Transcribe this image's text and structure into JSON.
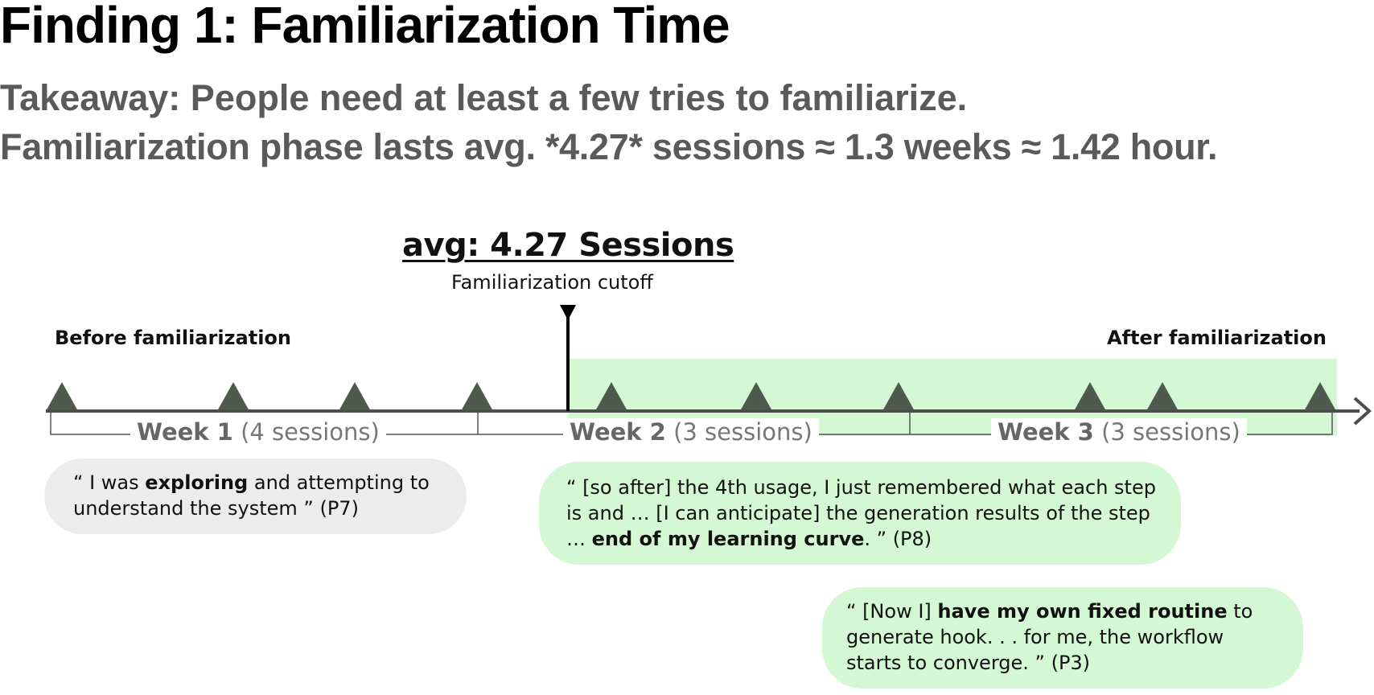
{
  "title": "Finding 1: Familiarization Time",
  "takeaway": {
    "line1": "Takeaway: People need at least a few tries to familiarize.",
    "line2": "Familiarization phase lasts avg. *4.27* sessions ≈ 1.3 weeks ≈ 1.42 hour."
  },
  "cutoff": {
    "avg_label": "avg: 4.27 Sessions",
    "label": "Familiarization cutoff"
  },
  "phases": {
    "before": "Before familiarization",
    "after": "After familiarization"
  },
  "weeks": [
    {
      "name": "Week 1",
      "sessions": "(4 sessions)"
    },
    {
      "name": "Week 2",
      "sessions": "(3 sessions)"
    },
    {
      "name": "Week 3",
      "sessions": "(3 sessions)"
    }
  ],
  "quotes": [
    {
      "pre": "“ I was ",
      "bold": "exploring",
      "post": " and attempting to understand the system ” (P7)"
    },
    {
      "pre": "“ [so after] the 4th usage, I just remembered what each step is and … [I can anticipate] the generation results of the step … ",
      "bold": "end of my learning curve",
      "post": ". ” (P8)"
    },
    {
      "pre": "“ [Now I] ",
      "bold": "have my own fixed routine",
      "post": " to generate hook. . . for me, the workflow starts to converge. ” (P3)"
    }
  ],
  "colors": {
    "title": "#000000",
    "takeaway": "#5a5a5a",
    "after_zone": "#d4f7d4",
    "marker": "#4d5a4d",
    "before_quote": "#ececec"
  }
}
